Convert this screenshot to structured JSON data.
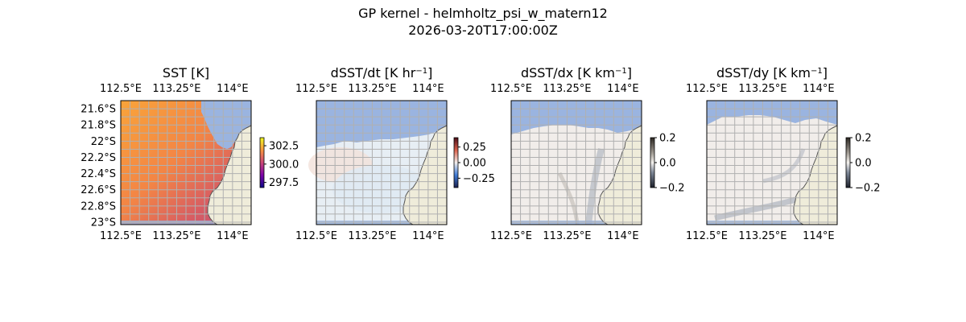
{
  "figure": {
    "title": "GP kernel - helmholtz_psi_w_matern12",
    "subtitle": "2026-03-20T17:00:00Z"
  },
  "colors": {
    "land": "#efecda",
    "water_mask": "#9ab4e0",
    "gridline": "#b0b0b0",
    "coastline": "#555555"
  },
  "chart_data": [
    {
      "type": "heatmap",
      "title": "SST [K]",
      "title_unit_superscript": "",
      "x_ticks": [
        "112.5°E",
        "113.25°E",
        "114°E"
      ],
      "y_ticks": [
        "21.6°S",
        "21.8°S",
        "22°S",
        "22.2°S",
        "22.4°S",
        "22.6°S",
        "22.8°S",
        "23°S"
      ],
      "xlim": [
        112.5,
        114.25
      ],
      "ylim": [
        -23.03,
        -21.5
      ],
      "grid": true,
      "colorbar": {
        "ticks": [
          "302.5",
          "300.0",
          "297.5"
        ],
        "tick_values": [
          302.5,
          300.0,
          297.5
        ],
        "range": [
          296.8,
          303.6
        ]
      },
      "colormap": "plasma"
    },
    {
      "type": "heatmap",
      "title": "dSST/dt [K hr",
      "title_unit_superscript": "−1",
      "title_suffix": "]",
      "x_ticks": [
        "112.5°E",
        "113.25°E",
        "114°E"
      ],
      "y_ticks": [],
      "xlim": [
        112.5,
        114.25
      ],
      "ylim": [
        -23.03,
        -21.5
      ],
      "grid": true,
      "colorbar": {
        "ticks": [
          "0.25",
          "0.00",
          "−0.25"
        ],
        "tick_values": [
          0.25,
          0.0,
          -0.25
        ],
        "range": [
          -0.4,
          0.4
        ]
      },
      "colormap": "balance"
    },
    {
      "type": "heatmap",
      "title": "dSST/dx [K km",
      "title_unit_superscript": "−1",
      "title_suffix": "]",
      "x_ticks": [
        "112.5°E",
        "113.25°E",
        "114°E"
      ],
      "y_ticks": [],
      "xlim": [
        112.5,
        114.25
      ],
      "ylim": [
        -23.03,
        -21.5
      ],
      "grid": true,
      "colorbar": {
        "ticks": [
          "0.2",
          "0.0",
          "−0.2"
        ],
        "tick_values": [
          0.2,
          0.0,
          -0.2
        ],
        "range": [
          -0.2,
          0.2
        ]
      },
      "colormap": "diff"
    },
    {
      "type": "heatmap",
      "title": "dSST/dy [K km",
      "title_unit_superscript": "−1",
      "title_suffix": "]",
      "x_ticks": [
        "112.5°E",
        "113.25°E",
        "114°E"
      ],
      "y_ticks": [],
      "xlim": [
        112.5,
        114.25
      ],
      "ylim": [
        -23.03,
        -21.5
      ],
      "grid": true,
      "colorbar": {
        "ticks": [
          "0.2",
          "0.0",
          "−0.2"
        ],
        "tick_values": [
          0.2,
          0.0,
          -0.2
        ],
        "range": [
          -0.2,
          0.2
        ]
      },
      "colormap": "diff"
    }
  ]
}
